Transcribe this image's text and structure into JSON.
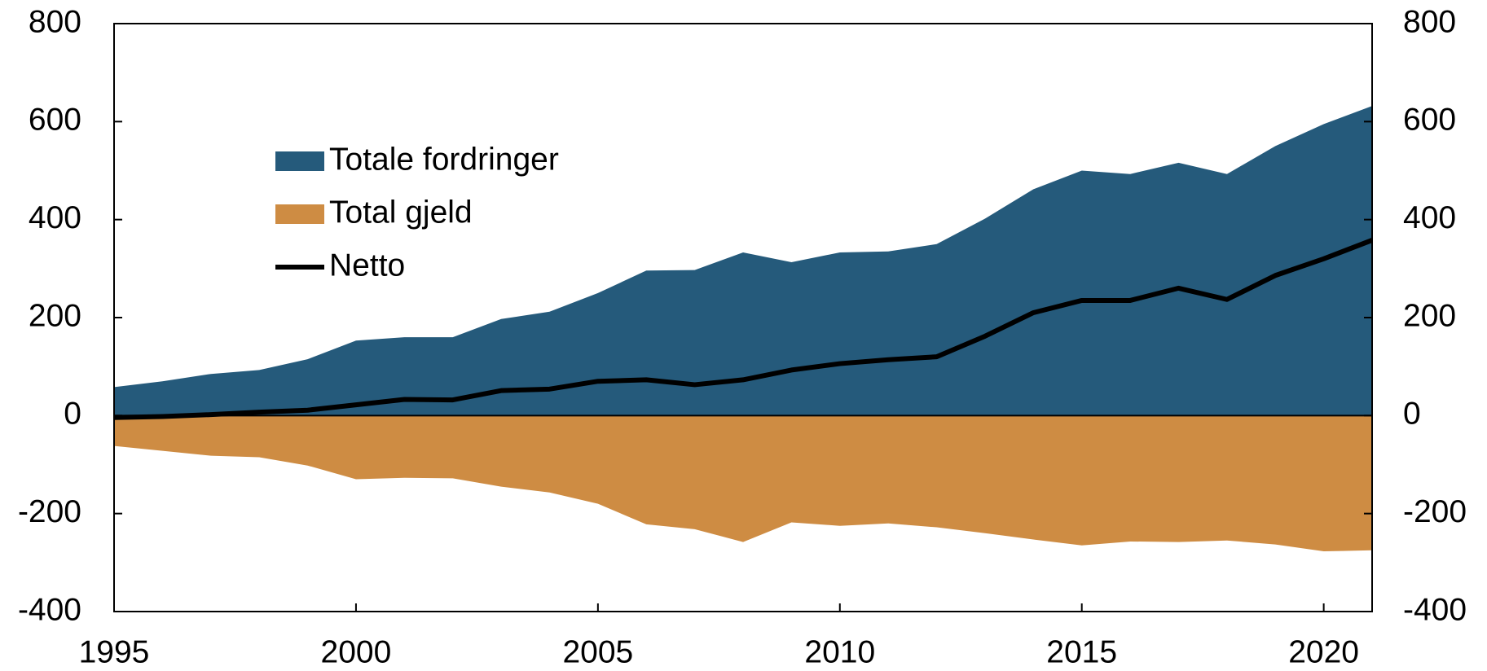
{
  "chart_data": {
    "type": "area",
    "x": [
      1995,
      1996,
      1997,
      1998,
      1999,
      2000,
      2001,
      2002,
      2003,
      2004,
      2005,
      2006,
      2007,
      2008,
      2009,
      2010,
      2011,
      2012,
      2013,
      2014,
      2015,
      2016,
      2017,
      2018,
      2019,
      2020,
      2021
    ],
    "series": [
      {
        "name": "Totale fordringer",
        "color": "#255a7b",
        "type": "area",
        "values": [
          58,
          70,
          85,
          93,
          115,
          153,
          160,
          160,
          197,
          212,
          250,
          296,
          297,
          333,
          313,
          333,
          335,
          350,
          402,
          462,
          500,
          493,
          516,
          493,
          550,
          595,
          632
        ]
      },
      {
        "name": "Total gjeld",
        "color": "#ce8c43",
        "type": "area",
        "values": [
          -62,
          -72,
          -82,
          -85,
          -102,
          -130,
          -127,
          -128,
          -145,
          -157,
          -180,
          -222,
          -232,
          -258,
          -218,
          -225,
          -220,
          -228,
          -240,
          -253,
          -265,
          -257,
          -258,
          -255,
          -263,
          -277,
          -275
        ]
      },
      {
        "name": "Netto",
        "color": "#000000",
        "type": "line",
        "values": [
          -4,
          -2,
          2,
          7,
          11,
          22,
          33,
          32,
          51,
          54,
          70,
          73,
          63,
          73,
          93,
          106,
          114,
          120,
          162,
          210,
          235,
          235,
          260,
          237,
          286,
          320,
          358
        ]
      }
    ],
    "xlim": [
      1995,
      2021
    ],
    "xticks": [
      1995,
      2000,
      2005,
      2010,
      2015,
      2020
    ],
    "ylim": [
      -400,
      800
    ],
    "yticks": [
      -400,
      -200,
      0,
      200,
      400,
      600,
      800
    ],
    "y2lim": [
      -400,
      800
    ],
    "y2ticks": [
      -400,
      -200,
      0,
      200,
      400,
      600,
      800
    ],
    "legend": "upper left"
  }
}
